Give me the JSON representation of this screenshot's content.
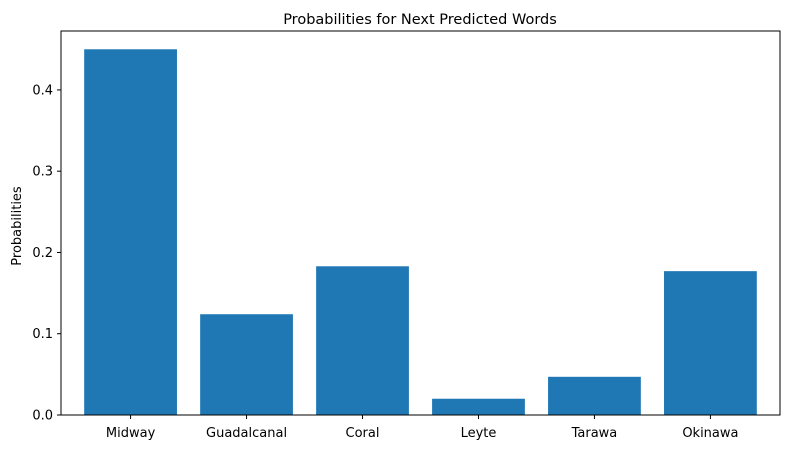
{
  "chart_data": {
    "type": "bar",
    "title": "Probabilities for Next Predicted Words",
    "xlabel": "",
    "ylabel": "Probabilities",
    "categories": [
      "Midway",
      "Guadalcanal",
      "Coral",
      "Leyte",
      "Tarawa",
      "Okinawa"
    ],
    "values": [
      0.45,
      0.124,
      0.183,
      0.02,
      0.047,
      0.177
    ],
    "ylim": [
      0,
      0.4725
    ],
    "yticks": [
      0.0,
      0.1,
      0.2,
      0.3,
      0.4
    ],
    "ytick_labels": [
      "0.0",
      "0.1",
      "0.2",
      "0.3",
      "0.4"
    ],
    "bar_color": "#1f77b4",
    "grid": false,
    "legend": "none"
  }
}
